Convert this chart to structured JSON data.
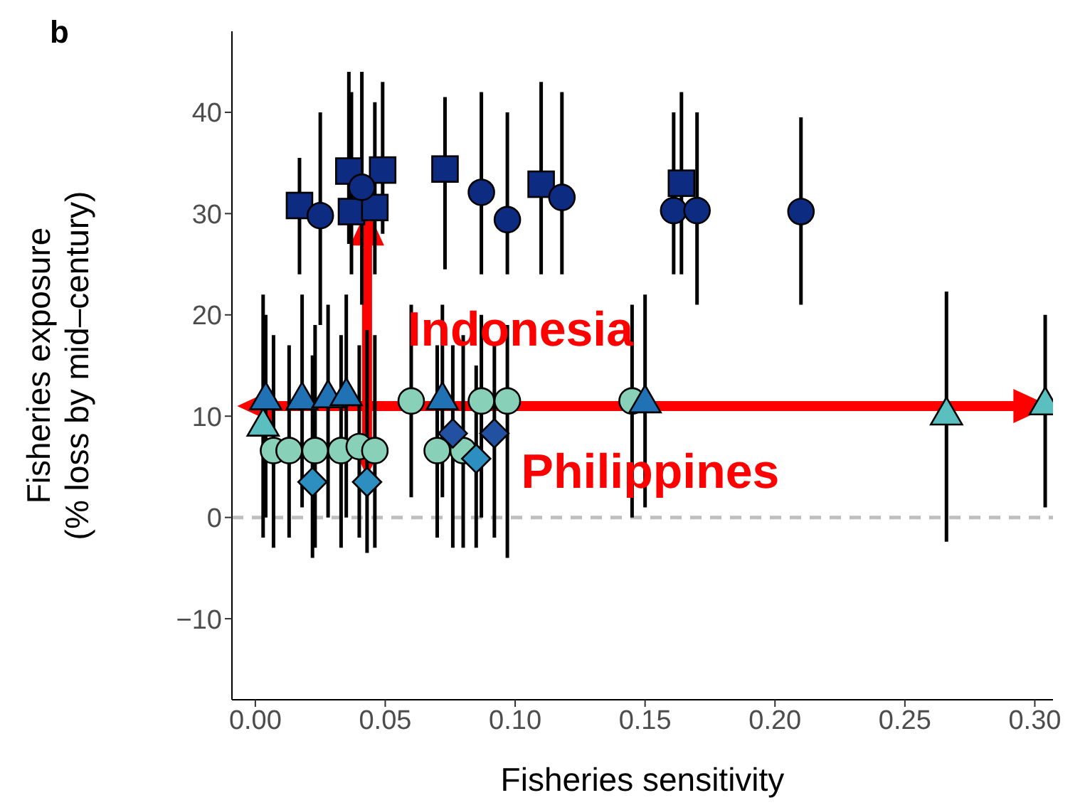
{
  "chart_data": {
    "type": "scatter",
    "xlabel": "Fisheries sensitivity",
    "ylabel": "Fisheries exposure\n(% loss by mid–century)",
    "xlim": [
      -0.009,
      0.307
    ],
    "ylim": [
      -18,
      48
    ],
    "xticks": [
      {
        "value": 0,
        "label": "0.00"
      },
      {
        "value": 0.05,
        "label": "0.05"
      },
      {
        "value": 0.1,
        "label": "0.10"
      },
      {
        "value": 0.15,
        "label": "0.15"
      },
      {
        "value": 0.2,
        "label": "0.20"
      },
      {
        "value": 0.25,
        "label": "0.25"
      },
      {
        "value": 0.3,
        "label": "0.30"
      }
    ],
    "yticks": [
      {
        "value": -10,
        "label": "−10"
      },
      0,
      10,
      20,
      30,
      40
    ],
    "grid": false,
    "legend": false,
    "ref_lines": [
      {
        "axis": "y",
        "value": 0,
        "color": "#bfbfbf",
        "line_style": "dashed"
      }
    ],
    "annotations": [
      "b",
      "Indonesia",
      "Philippines"
    ],
    "series": [
      {
        "color": "#88d1b8",
        "marker": "circle",
        "x": [
          0.007,
          0.013,
          0.023,
          0.033,
          0.04,
          0.046,
          0.07,
          0.08,
          0.06,
          0.087,
          0.097,
          0.145
        ],
        "values": [
          6.6,
          6.6,
          6.6,
          6.6,
          7,
          6.6,
          6.6,
          6.6,
          11.5,
          11.5,
          11.5,
          11.5
        ],
        "errors": [
          [
            -3,
            18
          ],
          [
            -2,
            17
          ],
          [
            -3,
            19
          ],
          [
            -3,
            18
          ],
          [
            -2,
            17
          ],
          [
            -3,
            18
          ],
          [
            -2,
            17
          ],
          [
            -3,
            18
          ],
          [
            2,
            21
          ],
          [
            0,
            20
          ],
          [
            -4,
            19
          ],
          [
            0,
            21
          ]
        ]
      },
      {
        "color": "#5bbfbf",
        "marker": "triangle",
        "x": [
          0.003,
          0.266,
          0.304
        ],
        "values": [
          9.2,
          10.3,
          11.3
        ],
        "errors": [
          [
            -2,
            22
          ],
          [
            -2.4,
            22.3
          ],
          [
            1,
            20
          ]
        ]
      },
      {
        "color": "#2171b5",
        "marker": "triangle",
        "x": [
          0.004,
          0.018,
          0.028,
          0.035,
          0.072,
          0.15
        ],
        "values": [
          11.8,
          11.8,
          12,
          12.2,
          11.8,
          11.5
        ],
        "errors": [
          [
            0,
            20
          ],
          [
            1,
            22
          ],
          [
            0,
            21
          ],
          [
            0,
            22
          ],
          [
            2,
            21
          ],
          [
            1,
            22
          ]
        ]
      },
      {
        "color": "#2151a0",
        "marker": "diamond",
        "x": [
          0.076,
          0.092
        ],
        "values": [
          8.3,
          8.3
        ],
        "errors": [
          [
            -3,
            17
          ],
          [
            -2,
            17
          ]
        ]
      },
      {
        "color": "#2c8fc0",
        "marker": "diamond",
        "x": [
          0.022,
          0.043,
          0.085
        ],
        "values": [
          3.5,
          3.5,
          5.8
        ],
        "errors": [
          [
            -4,
            16
          ],
          [
            -3.5,
            18.5
          ],
          [
            -3,
            15
          ]
        ]
      },
      {
        "color": "#0d2b80",
        "marker": "square",
        "x": [
          0.017,
          0.036,
          0.037,
          0.046,
          0.049,
          0.073,
          0.11,
          0.164
        ],
        "values": [
          30.8,
          34.2,
          30.2,
          30.6,
          34.3,
          34.4,
          32.9,
          33.0
        ],
        "errors": [
          [
            24,
            35.5
          ],
          [
            27,
            44
          ],
          [
            24,
            42
          ],
          [
            24,
            41
          ],
          [
            28,
            43
          ],
          [
            24.5,
            41.5
          ],
          [
            24,
            43
          ],
          [
            24,
            42
          ]
        ]
      },
      {
        "color": "#0d2b80",
        "marker": "circle",
        "x": [
          0.025,
          0.041,
          0.087,
          0.097,
          0.118,
          0.161,
          0.17,
          0.21
        ],
        "values": [
          29.8,
          32.6,
          32.1,
          29.4,
          31.6,
          30.3,
          30.3,
          30.2
        ],
        "errors": [
          [
            19,
            40
          ],
          [
            21,
            44
          ],
          [
            24,
            42
          ],
          [
            24,
            40
          ],
          [
            24,
            42
          ],
          [
            24,
            40
          ],
          [
            21,
            40
          ],
          [
            21,
            39.5
          ]
        ]
      }
    ]
  }
}
